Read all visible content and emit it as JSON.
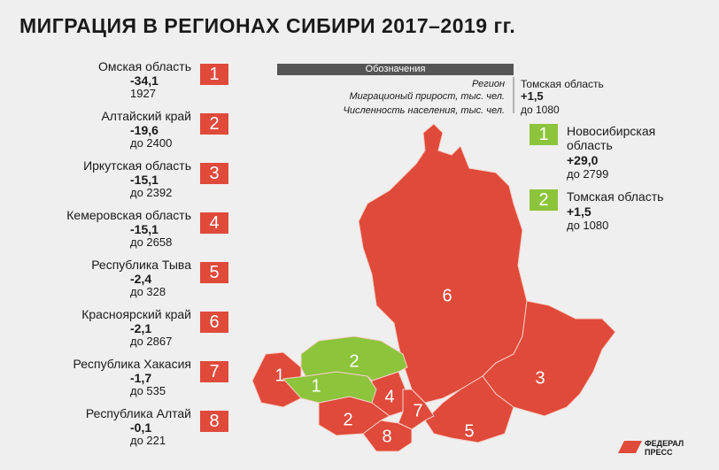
{
  "title": "МИГРАЦИЯ В РЕГИОНАХ СИБИРИ 2017–2019 гг.",
  "outflow": [
    {
      "rank": "1",
      "region": "Омская область",
      "growth": "-34,1",
      "population": "1927"
    },
    {
      "rank": "2",
      "region": "Алтайский край",
      "growth": "-19,6",
      "population": "до 2400"
    },
    {
      "rank": "3",
      "region": "Иркутская область",
      "growth": "-15,1",
      "population": "до 2392"
    },
    {
      "rank": "4",
      "region": "Кемеровская область",
      "growth": "-15,1",
      "population": "до 2658"
    },
    {
      "rank": "5",
      "region": "Республика Тыва",
      "growth": "-2,4",
      "population": "до 328"
    },
    {
      "rank": "6",
      "region": "Красноярский край",
      "growth": "-2,1",
      "population": "до 2867"
    },
    {
      "rank": "7",
      "region": "Республика Хакасия",
      "growth": "-1,7",
      "population": "до 535"
    },
    {
      "rank": "8",
      "region": "Республика Алтай",
      "growth": "-0,1",
      "population": "до 221"
    }
  ],
  "inflow": [
    {
      "rank": "1",
      "region": "Новосибирская область",
      "growth": "+29,0",
      "population": "до 2799"
    },
    {
      "rank": "2",
      "region": "Томская область",
      "growth": "+1,5",
      "population": "до 1080"
    }
  ],
  "legend": {
    "title": "Обозначения",
    "region_label": "Регион",
    "growth_label": "Миграционый прирост, тыс. чел.",
    "population_label": "Численность населения, тыс. чел.",
    "example_region": "Томская область",
    "example_growth": "+1,5",
    "example_population": "до 1080"
  },
  "logo": [
    "ФЕДЕРАЛ",
    "ПРЕСС"
  ]
}
